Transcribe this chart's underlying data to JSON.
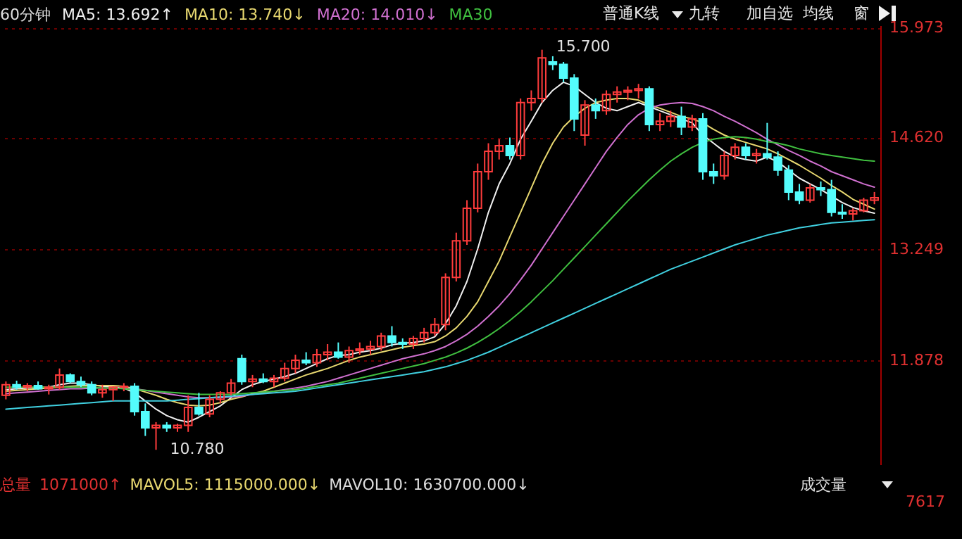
{
  "chart_data": {
    "type": "candlestick",
    "title": "60分钟",
    "categories": [
      null,
      null,
      null,
      null,
      null,
      null,
      null,
      null,
      null,
      null,
      null,
      null,
      null,
      null,
      null,
      null,
      null,
      null,
      null,
      null,
      null,
      null,
      null,
      null,
      null,
      null,
      null,
      null,
      null,
      null,
      null,
      null,
      null,
      null,
      null,
      null,
      null,
      null,
      null,
      null,
      null,
      null,
      null,
      null,
      null,
      null,
      null,
      null,
      null,
      null,
      null,
      null,
      null,
      null,
      null,
      null,
      null,
      null,
      null,
      null,
      null,
      null,
      null,
      null,
      null,
      null,
      null,
      null,
      null,
      null,
      null,
      null,
      null,
      null,
      null,
      null,
      null,
      null,
      null,
      null,
      null,
      null
    ],
    "ohlc": [
      [
        11.45,
        11.62,
        11.4,
        11.58
      ],
      [
        11.58,
        11.63,
        11.52,
        11.55
      ],
      [
        11.55,
        11.6,
        11.5,
        11.57
      ],
      [
        11.57,
        11.62,
        11.52,
        11.53
      ],
      [
        11.53,
        11.58,
        11.46,
        11.55
      ],
      [
        11.55,
        11.78,
        11.52,
        11.7
      ],
      [
        11.7,
        11.72,
        11.6,
        11.62
      ],
      [
        11.62,
        11.68,
        11.55,
        11.58
      ],
      [
        11.58,
        11.62,
        11.45,
        11.48
      ],
      [
        11.48,
        11.58,
        11.42,
        11.52
      ],
      [
        11.52,
        11.56,
        11.38,
        11.55
      ],
      [
        11.55,
        11.6,
        11.5,
        11.56
      ],
      [
        11.56,
        11.6,
        11.2,
        11.25
      ],
      [
        11.25,
        11.35,
        10.95,
        11.05
      ],
      [
        11.05,
        11.12,
        10.78,
        11.08
      ],
      [
        11.08,
        11.12,
        11.0,
        11.05
      ],
      [
        11.05,
        11.1,
        11.0,
        11.08
      ],
      [
        11.08,
        11.45,
        11.0,
        11.3
      ],
      [
        11.3,
        11.48,
        11.2,
        11.22
      ],
      [
        11.22,
        11.45,
        11.18,
        11.4
      ],
      [
        11.4,
        11.5,
        11.35,
        11.48
      ],
      [
        11.48,
        11.65,
        11.45,
        11.6
      ],
      [
        11.9,
        11.95,
        11.58,
        11.62
      ],
      [
        11.62,
        11.7,
        11.55,
        11.65
      ],
      [
        11.65,
        11.72,
        11.6,
        11.62
      ],
      [
        11.62,
        11.7,
        11.55,
        11.66
      ],
      [
        11.66,
        11.85,
        11.62,
        11.78
      ],
      [
        11.78,
        11.95,
        11.72,
        11.88
      ],
      [
        11.88,
        11.98,
        11.82,
        11.85
      ],
      [
        11.85,
        12.02,
        11.8,
        11.95
      ],
      [
        11.95,
        12.08,
        11.88,
        11.98
      ],
      [
        11.98,
        12.1,
        11.9,
        11.92
      ],
      [
        11.92,
        12.05,
        11.85,
        12.0
      ],
      [
        12.0,
        12.1,
        11.95,
        12.02
      ],
      [
        12.02,
        12.12,
        11.95,
        12.05
      ],
      [
        12.05,
        12.22,
        12.0,
        12.18
      ],
      [
        12.18,
        12.3,
        12.05,
        12.1
      ],
      [
        12.1,
        12.15,
        12.02,
        12.08
      ],
      [
        12.08,
        12.18,
        12.02,
        12.15
      ],
      [
        12.15,
        12.28,
        12.1,
        12.22
      ],
      [
        12.22,
        12.4,
        12.18,
        12.32
      ],
      [
        12.32,
        12.95,
        12.25,
        12.9
      ],
      [
        12.9,
        13.45,
        12.85,
        13.35
      ],
      [
        13.35,
        13.85,
        13.3,
        13.75
      ],
      [
        13.75,
        14.3,
        13.7,
        14.2
      ],
      [
        14.2,
        14.55,
        14.1,
        14.45
      ],
      [
        14.45,
        14.6,
        14.35,
        14.52
      ],
      [
        14.52,
        14.62,
        14.35,
        14.4
      ],
      [
        14.4,
        15.1,
        14.35,
        15.05
      ],
      [
        15.05,
        15.2,
        14.95,
        15.1
      ],
      [
        15.1,
        15.7,
        15.05,
        15.6
      ],
      [
        15.55,
        15.62,
        15.45,
        15.52
      ],
      [
        15.52,
        15.55,
        15.3,
        15.35
      ],
      [
        15.35,
        15.4,
        14.7,
        14.85
      ],
      [
        14.65,
        15.08,
        14.52,
        15.02
      ],
      [
        15.02,
        15.1,
        14.85,
        14.95
      ],
      [
        14.95,
        15.2,
        14.9,
        15.15
      ],
      [
        15.15,
        15.25,
        15.05,
        15.18
      ],
      [
        15.18,
        15.25,
        15.08,
        15.2
      ],
      [
        15.2,
        15.28,
        15.1,
        15.22
      ],
      [
        15.22,
        15.25,
        14.7,
        14.78
      ],
      [
        14.78,
        14.92,
        14.7,
        14.82
      ],
      [
        14.82,
        14.95,
        14.75,
        14.88
      ],
      [
        14.88,
        15.0,
        14.65,
        14.75
      ],
      [
        14.75,
        14.9,
        14.7,
        14.85
      ],
      [
        14.85,
        14.92,
        14.1,
        14.2
      ],
      [
        14.2,
        14.3,
        14.05,
        14.15
      ],
      [
        14.15,
        14.45,
        14.1,
        14.4
      ],
      [
        14.4,
        14.55,
        14.35,
        14.5
      ],
      [
        14.5,
        14.55,
        14.35,
        14.4
      ],
      [
        14.4,
        14.48,
        14.3,
        14.42
      ],
      [
        14.42,
        14.8,
        14.35,
        14.38
      ],
      [
        14.38,
        14.45,
        14.15,
        14.22
      ],
      [
        14.22,
        14.28,
        13.85,
        13.95
      ],
      [
        13.95,
        14.05,
        13.8,
        13.85
      ],
      [
        13.85,
        14.05,
        13.82,
        14.0
      ],
      [
        14.0,
        14.08,
        13.9,
        13.98
      ],
      [
        13.98,
        14.1,
        13.65,
        13.7
      ],
      [
        13.7,
        13.8,
        13.62,
        13.68
      ],
      [
        13.68,
        13.75,
        13.6,
        13.72
      ],
      [
        13.72,
        13.88,
        13.7,
        13.85
      ],
      [
        13.85,
        13.95,
        13.8,
        13.88
      ]
    ],
    "colors": [
      "#ff3c3c",
      "#54fcfc",
      "#ff3c3c",
      "#54fcfc",
      "#ff3c3c",
      "#ff3c3c",
      "#54fcfc",
      "#54fcfc",
      "#54fcfc",
      "#ff3c3c",
      "#ff3c3c",
      "#ff3c3c",
      "#54fcfc",
      "#54fcfc",
      "#ff3c3c",
      "#54fcfc",
      "#ff3c3c",
      "#ff3c3c",
      "#54fcfc",
      "#ff3c3c",
      "#ff3c3c",
      "#ff3c3c",
      "#54fcfc",
      "#ff3c3c",
      "#54fcfc",
      "#ff3c3c",
      "#ff3c3c",
      "#ff3c3c",
      "#54fcfc",
      "#ff3c3c",
      "#ff3c3c",
      "#54fcfc",
      "#ff3c3c",
      "#ff3c3c",
      "#ff3c3c",
      "#ff3c3c",
      "#54fcfc",
      "#54fcfc",
      "#ff3c3c",
      "#ff3c3c",
      "#ff3c3c",
      "#ff3c3c",
      "#ff3c3c",
      "#ff3c3c",
      "#ff3c3c",
      "#ff3c3c",
      "#ff3c3c",
      "#54fcfc",
      "#ff3c3c",
      "#ff3c3c",
      "#ff3c3c",
      "#54fcfc",
      "#54fcfc",
      "#54fcfc",
      "#ff3c3c",
      "#54fcfc",
      "#ff3c3c",
      "#ff3c3c",
      "#ff3c3c",
      "#ff3c3c",
      "#54fcfc",
      "#ff3c3c",
      "#ff3c3c",
      "#54fcfc",
      "#ff3c3c",
      "#54fcfc",
      "#54fcfc",
      "#ff3c3c",
      "#ff3c3c",
      "#54fcfc",
      "#ff3c3c",
      "#54fcfc",
      "#54fcfc",
      "#54fcfc",
      "#54fcfc",
      "#ff3c3c",
      "#54fcfc",
      "#54fcfc",
      "#54fcfc",
      "#ff3c3c",
      "#ff3c3c",
      "#ff3c3c"
    ],
    "series": [
      {
        "name": "MA5: 13.692↑",
        "type": "line",
        "color": "#f0f0f0",
        "values": [
          11.52,
          11.53,
          11.54,
          11.55,
          11.55,
          11.58,
          11.6,
          11.6,
          11.58,
          11.56,
          11.55,
          11.54,
          11.48,
          11.38,
          11.28,
          11.2,
          11.15,
          11.12,
          11.18,
          11.25,
          11.32,
          11.42,
          11.52,
          11.58,
          11.62,
          11.65,
          11.68,
          11.72,
          11.78,
          11.84,
          11.9,
          11.94,
          11.95,
          11.98,
          12.0,
          12.03,
          12.07,
          12.09,
          12.1,
          12.12,
          12.17,
          12.33,
          12.55,
          12.85,
          13.25,
          13.7,
          14.05,
          14.3,
          14.6,
          14.82,
          15.05,
          15.2,
          15.3,
          15.25,
          15.15,
          15.05,
          14.98,
          14.95,
          15.0,
          15.05,
          15.0,
          14.95,
          14.9,
          14.85,
          14.8,
          14.65,
          14.55,
          14.45,
          14.38,
          14.35,
          14.33,
          14.38,
          14.32,
          14.22,
          14.12,
          14.05,
          13.98,
          13.9,
          13.82,
          13.76,
          13.72,
          13.69
        ]
      },
      {
        "name": "MA10: 13.740↓",
        "type": "line",
        "color": "#e8d870",
        "values": [
          11.5,
          11.51,
          11.52,
          11.53,
          11.54,
          11.55,
          11.56,
          11.57,
          11.57,
          11.57,
          11.57,
          11.56,
          11.53,
          11.49,
          11.45,
          11.4,
          11.36,
          11.33,
          11.32,
          11.33,
          11.36,
          11.4,
          11.43,
          11.47,
          11.5,
          11.55,
          11.6,
          11.65,
          11.7,
          11.74,
          11.78,
          11.83,
          11.88,
          11.92,
          11.95,
          11.98,
          12.01,
          12.04,
          12.06,
          12.08,
          12.11,
          12.18,
          12.28,
          12.42,
          12.6,
          12.85,
          13.1,
          13.4,
          13.7,
          14.0,
          14.3,
          14.55,
          14.75,
          14.88,
          14.98,
          15.05,
          15.08,
          15.1,
          15.1,
          15.08,
          15.02,
          14.98,
          14.93,
          14.88,
          14.85,
          14.8,
          14.72,
          14.65,
          14.6,
          14.56,
          14.52,
          14.48,
          14.42,
          14.35,
          14.28,
          14.2,
          14.12,
          14.03,
          13.95,
          13.86,
          13.8,
          13.74
        ]
      },
      {
        "name": "MA20: 14.010↓",
        "type": "line",
        "color": "#d070d0",
        "values": [
          11.47,
          11.48,
          11.49,
          11.5,
          11.51,
          11.52,
          11.53,
          11.53,
          11.54,
          11.54,
          11.54,
          11.54,
          11.53,
          11.51,
          11.49,
          11.47,
          11.45,
          11.43,
          11.42,
          11.42,
          11.42,
          11.43,
          11.44,
          11.46,
          11.48,
          11.5,
          11.52,
          11.54,
          11.56,
          11.59,
          11.62,
          11.66,
          11.7,
          11.74,
          11.78,
          11.82,
          11.86,
          11.9,
          11.93,
          11.96,
          12.0,
          12.05,
          12.12,
          12.2,
          12.3,
          12.42,
          12.55,
          12.7,
          12.87,
          13.05,
          13.25,
          13.45,
          13.65,
          13.85,
          14.05,
          14.25,
          14.45,
          14.62,
          14.78,
          14.9,
          14.98,
          15.02,
          15.04,
          15.05,
          15.04,
          15.0,
          14.95,
          14.88,
          14.82,
          14.75,
          14.68,
          14.6,
          14.53,
          14.46,
          14.4,
          14.33,
          14.27,
          14.2,
          14.15,
          14.1,
          14.05,
          14.01
        ]
      },
      {
        "name": "MA30",
        "type": "line",
        "color": "#40c040",
        "values": [
          11.55,
          11.55,
          11.55,
          11.55,
          11.55,
          11.55,
          11.55,
          11.55,
          11.55,
          11.54,
          11.54,
          11.53,
          11.52,
          11.51,
          11.5,
          11.49,
          11.48,
          11.47,
          11.46,
          11.46,
          11.46,
          11.46,
          11.47,
          11.48,
          11.49,
          11.5,
          11.51,
          11.52,
          11.54,
          11.56,
          11.58,
          11.6,
          11.63,
          11.66,
          11.69,
          11.72,
          11.75,
          11.78,
          11.81,
          11.84,
          11.88,
          11.92,
          11.97,
          12.03,
          12.1,
          12.18,
          12.27,
          12.37,
          12.48,
          12.6,
          12.73,
          12.86,
          13.0,
          13.14,
          13.28,
          13.42,
          13.56,
          13.7,
          13.84,
          13.97,
          14.1,
          14.22,
          14.33,
          14.42,
          14.5,
          14.56,
          14.6,
          14.62,
          14.63,
          14.62,
          14.6,
          14.57,
          14.55,
          14.52,
          14.48,
          14.45,
          14.42,
          14.4,
          14.38,
          14.36,
          14.34,
          14.33
        ]
      },
      {
        "type": "line",
        "color": "#40d0e0",
        "values": [
          11.28,
          11.29,
          11.3,
          11.31,
          11.32,
          11.33,
          11.34,
          11.35,
          11.36,
          11.37,
          11.38,
          11.38,
          11.38,
          11.38,
          11.38,
          11.38,
          11.39,
          11.4,
          11.41,
          11.42,
          11.43,
          11.44,
          11.45,
          11.46,
          11.47,
          11.48,
          11.49,
          11.5,
          11.52,
          11.54,
          11.56,
          11.58,
          11.6,
          11.62,
          11.64,
          11.66,
          11.68,
          11.7,
          11.72,
          11.74,
          11.77,
          11.8,
          11.84,
          11.88,
          11.93,
          11.98,
          12.04,
          12.1,
          12.16,
          12.22,
          12.28,
          12.34,
          12.4,
          12.46,
          12.52,
          12.58,
          12.64,
          12.7,
          12.76,
          12.82,
          12.88,
          12.94,
          13.0,
          13.05,
          13.1,
          13.15,
          13.2,
          13.25,
          13.3,
          13.34,
          13.38,
          13.42,
          13.45,
          13.48,
          13.51,
          13.53,
          13.55,
          13.57,
          13.58,
          13.59,
          13.6,
          13.61
        ]
      }
    ],
    "ylim": [
      10.6,
      16.0
    ],
    "yticks": [
      {
        "value": 15.973,
        "label": "15.973"
      },
      {
        "value": 14.62,
        "label": "14.620"
      },
      {
        "value": 13.249,
        "label": "13.249"
      },
      {
        "value": 11.878,
        "label": "11.878"
      }
    ],
    "grid": "y",
    "legend": "top left",
    "annotations": [
      "15.700",
      "10.780",
      "普通K线",
      "九转",
      "加自选",
      "均线",
      "窗",
      "总量",
      "1071000↑",
      "MAVOL5: 1115000.000↓",
      "MAVOL10: 1630700.000↓",
      "成交量",
      "7617"
    ]
  }
}
